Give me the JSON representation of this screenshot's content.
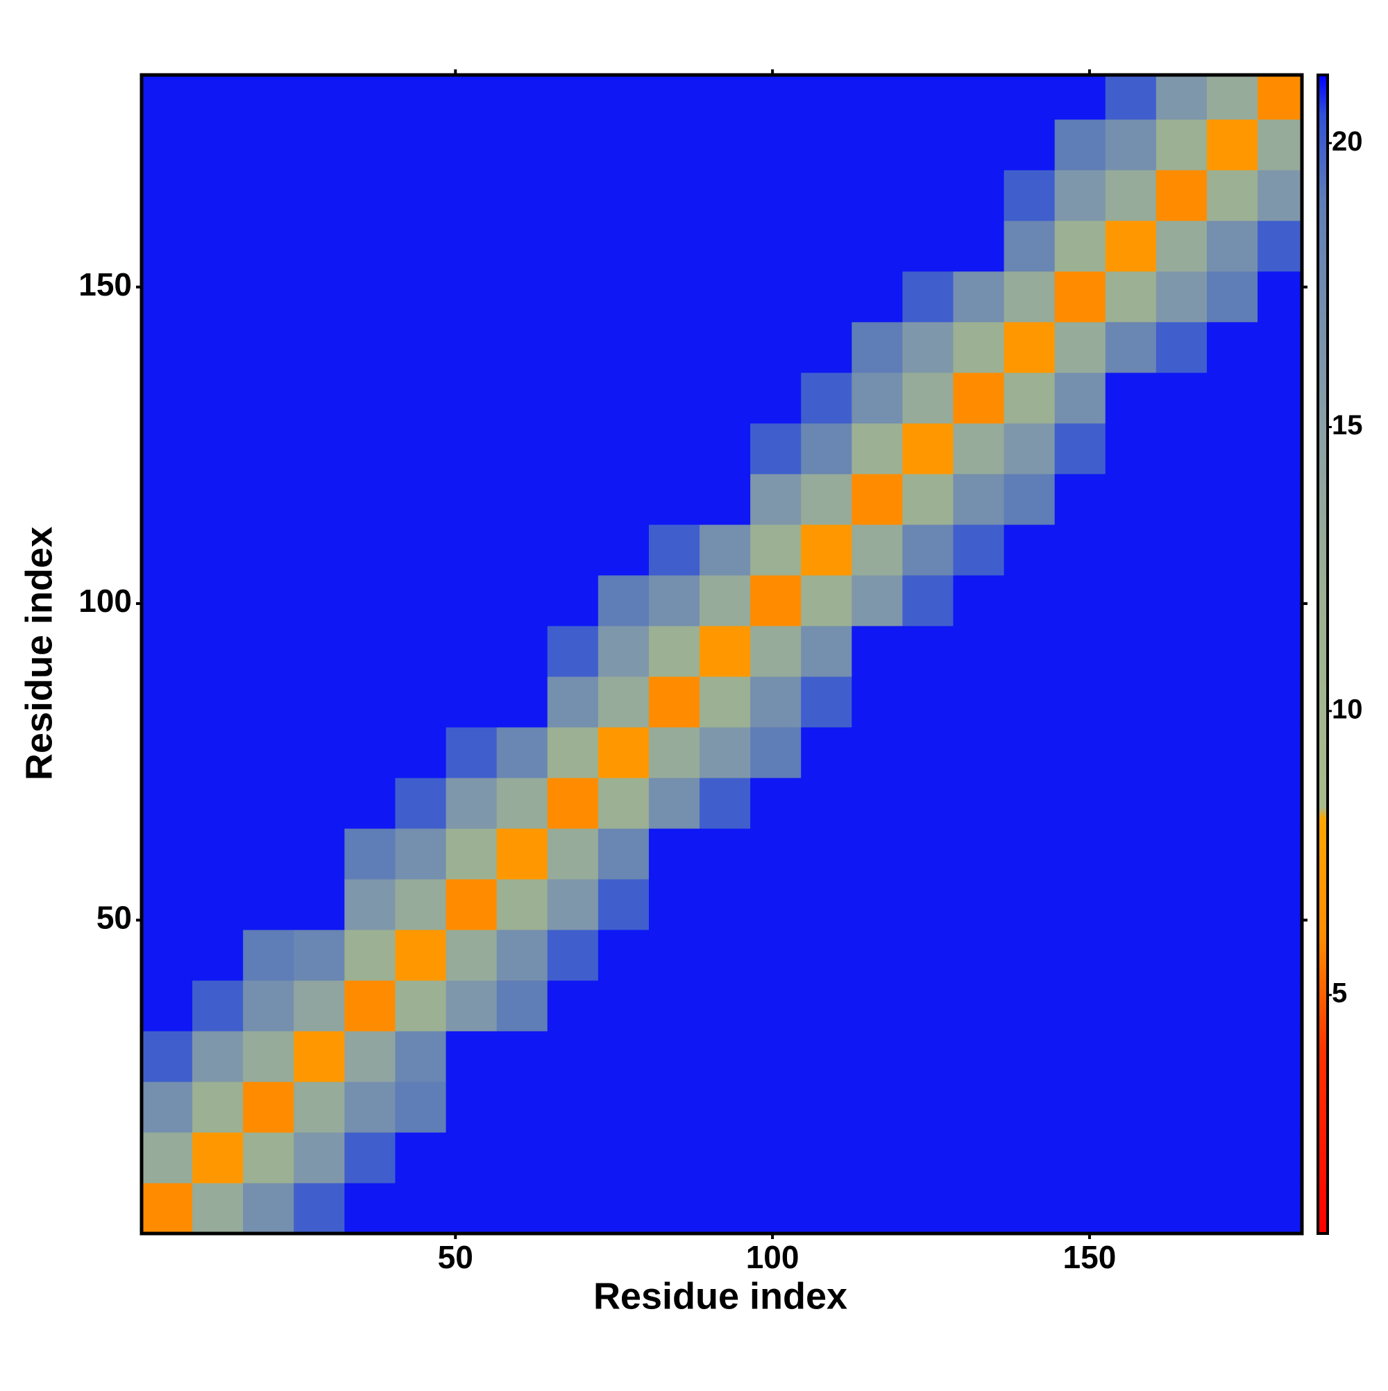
{
  "chart_data": {
    "type": "heatmap",
    "xlabel": "Residue index",
    "ylabel": "Residue index",
    "xbins": [
      0.5,
      8.5,
      16.5,
      24.5,
      32.5,
      40.5,
      48.5,
      56.5,
      64.5,
      72.5,
      80.5,
      88.5,
      96.5,
      104.5,
      112.5,
      120.5,
      128.5,
      136.5,
      144.5,
      152.5,
      160.5,
      168.5,
      176.5,
      183.5
    ],
    "ybins": [
      0.5,
      8.5,
      16.5,
      24.5,
      32.5,
      40.5,
      48.5,
      56.5,
      64.5,
      72.5,
      80.5,
      88.5,
      96.5,
      104.5,
      112.5,
      120.5,
      128.5,
      136.5,
      144.5,
      152.5,
      160.5,
      168.5,
      176.5,
      183.5
    ],
    "xlim": [
      0.5,
      183.5
    ],
    "ylim": [
      0.5,
      183.5
    ],
    "xticks": [
      50,
      100,
      150
    ],
    "yticks": [
      50,
      100,
      150
    ],
    "z": [
      [
        6,
        13,
        17,
        20,
        21,
        21,
        21,
        21,
        21,
        21,
        21,
        21,
        21,
        21,
        21,
        21,
        21,
        21,
        21,
        21,
        21,
        21,
        21
      ],
      [
        13,
        7,
        12,
        16,
        20,
        21,
        21,
        21,
        21,
        21,
        21,
        21,
        21,
        21,
        21,
        21,
        21,
        21,
        21,
        21,
        21,
        21,
        21
      ],
      [
        17,
        12,
        6,
        13,
        17,
        19,
        21,
        21,
        21,
        21,
        21,
        21,
        21,
        21,
        21,
        21,
        21,
        21,
        21,
        21,
        21,
        21,
        21
      ],
      [
        20,
        16,
        13,
        7,
        14,
        18,
        21,
        21,
        21,
        21,
        21,
        21,
        21,
        21,
        21,
        21,
        21,
        21,
        21,
        21,
        21,
        21,
        21
      ],
      [
        21,
        20,
        17,
        14,
        6,
        12,
        16,
        19,
        21,
        21,
        21,
        21,
        21,
        21,
        21,
        21,
        21,
        21,
        21,
        21,
        21,
        21,
        21
      ],
      [
        21,
        21,
        19,
        18,
        12,
        7,
        13,
        17,
        20,
        21,
        21,
        21,
        21,
        21,
        21,
        21,
        21,
        21,
        21,
        21,
        21,
        21,
        21
      ],
      [
        21,
        21,
        21,
        21,
        16,
        13,
        6,
        12,
        16,
        20,
        21,
        21,
        21,
        21,
        21,
        21,
        21,
        21,
        21,
        21,
        21,
        21,
        21
      ],
      [
        21,
        21,
        21,
        21,
        19,
        17,
        12,
        7,
        13,
        18,
        21,
        21,
        21,
        21,
        21,
        21,
        21,
        21,
        21,
        21,
        21,
        21,
        21
      ],
      [
        21,
        21,
        21,
        21,
        21,
        20,
        16,
        13,
        6,
        12,
        17,
        20,
        21,
        21,
        21,
        21,
        21,
        21,
        21,
        21,
        21,
        21,
        21
      ],
      [
        21,
        21,
        21,
        21,
        21,
        21,
        20,
        18,
        12,
        7,
        13,
        16,
        19,
        21,
        21,
        21,
        21,
        21,
        21,
        21,
        21,
        21,
        21
      ],
      [
        21,
        21,
        21,
        21,
        21,
        21,
        21,
        21,
        17,
        13,
        6,
        12,
        17,
        20,
        21,
        21,
        21,
        21,
        21,
        21,
        21,
        21,
        21
      ],
      [
        21,
        21,
        21,
        21,
        21,
        21,
        21,
        21,
        20,
        16,
        12,
        7,
        13,
        17,
        21,
        21,
        21,
        21,
        21,
        21,
        21,
        21,
        21
      ],
      [
        21,
        21,
        21,
        21,
        21,
        21,
        21,
        21,
        21,
        19,
        17,
        13,
        6,
        12,
        16,
        20,
        21,
        21,
        21,
        21,
        21,
        21,
        21
      ],
      [
        21,
        21,
        21,
        21,
        21,
        21,
        21,
        21,
        21,
        21,
        20,
        17,
        12,
        7,
        13,
        18,
        20,
        21,
        21,
        21,
        21,
        21,
        21
      ],
      [
        21,
        21,
        21,
        21,
        21,
        21,
        21,
        21,
        21,
        21,
        21,
        21,
        16,
        13,
        6,
        12,
        17,
        19,
        21,
        21,
        21,
        21,
        21
      ],
      [
        21,
        21,
        21,
        21,
        21,
        21,
        21,
        21,
        21,
        21,
        21,
        21,
        20,
        18,
        12,
        7,
        13,
        16,
        20,
        21,
        21,
        21,
        21
      ],
      [
        21,
        21,
        21,
        21,
        21,
        21,
        21,
        21,
        21,
        21,
        21,
        21,
        21,
        20,
        17,
        13,
        6,
        12,
        17,
        21,
        21,
        21,
        21
      ],
      [
        21,
        21,
        21,
        21,
        21,
        21,
        21,
        21,
        21,
        21,
        21,
        21,
        21,
        21,
        19,
        16,
        12,
        7,
        13,
        18,
        20,
        21,
        21
      ],
      [
        21,
        21,
        21,
        21,
        21,
        21,
        21,
        21,
        21,
        21,
        21,
        21,
        21,
        21,
        21,
        20,
        17,
        13,
        6,
        12,
        16,
        19,
        21
      ],
      [
        21,
        21,
        21,
        21,
        21,
        21,
        21,
        21,
        21,
        21,
        21,
        21,
        21,
        21,
        21,
        21,
        21,
        18,
        12,
        7,
        13,
        17,
        20
      ],
      [
        21,
        21,
        21,
        21,
        21,
        21,
        21,
        21,
        21,
        21,
        21,
        21,
        21,
        21,
        21,
        21,
        21,
        20,
        16,
        13,
        6,
        12,
        16
      ],
      [
        21,
        21,
        21,
        21,
        21,
        21,
        21,
        21,
        21,
        21,
        21,
        21,
        21,
        21,
        21,
        21,
        21,
        21,
        19,
        17,
        12,
        7,
        13
      ],
      [
        21,
        21,
        21,
        21,
        21,
        21,
        21,
        21,
        21,
        21,
        21,
        21,
        21,
        21,
        21,
        21,
        21,
        21,
        21,
        20,
        16,
        13,
        6
      ]
    ],
    "colorscale": [
      [
        0.8,
        "#ff0000"
      ],
      [
        4,
        "#ff3300"
      ],
      [
        6,
        "#ff8c00"
      ],
      [
        8.1,
        "#ffa500"
      ],
      [
        8.3,
        "#a9bb8c"
      ],
      [
        12,
        "#9cb093"
      ],
      [
        15,
        "#8aa0a6"
      ],
      [
        19,
        "#5f7db6"
      ],
      [
        20.5,
        "#3050d8"
      ],
      [
        21.2,
        "#0000ff"
      ]
    ],
    "colorbar": {
      "lim": [
        0.8,
        21.2
      ],
      "ticks": [
        5,
        10,
        15,
        20
      ]
    }
  }
}
